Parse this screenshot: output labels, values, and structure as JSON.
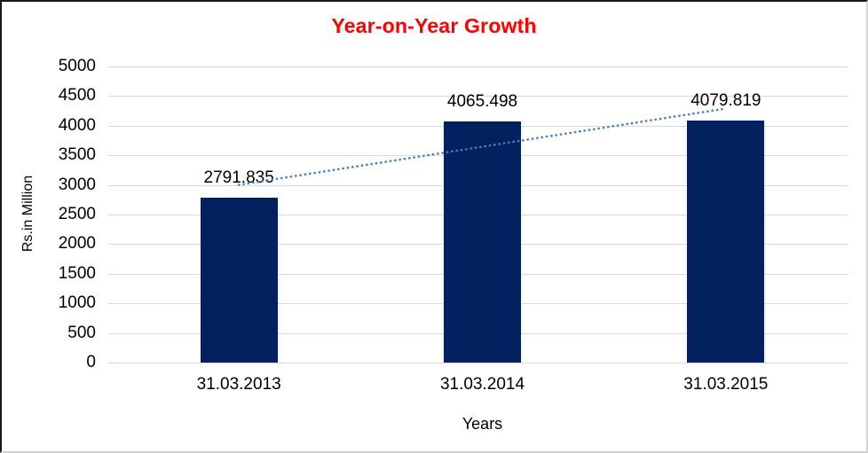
{
  "chart_data": {
    "type": "bar",
    "title": "Year-on-Year Growth",
    "title_color": "#FF0000",
    "xlabel": "Years",
    "ylabel": "Rs.in Million",
    "categories": [
      "31.03.2013",
      "31.03.2014",
      "31.03.2015"
    ],
    "values": [
      2791.835,
      4065.498,
      4079.819
    ],
    "data_labels": [
      "2791.835",
      "4065.498",
      "4079.819"
    ],
    "ylim": [
      0,
      5000
    ],
    "ytick_step": 500,
    "yticks": [
      "0",
      "500",
      "1000",
      "1500",
      "2000",
      "2500",
      "3000",
      "3500",
      "4000",
      "4500",
      "5000"
    ],
    "bar_color": "#02215E",
    "gridline_color": "#D9D9D9",
    "trendline": {
      "type": "linear",
      "style": "dotted",
      "color": "#4A7EBB"
    },
    "gridlines": "horizontal",
    "legend": "none"
  }
}
